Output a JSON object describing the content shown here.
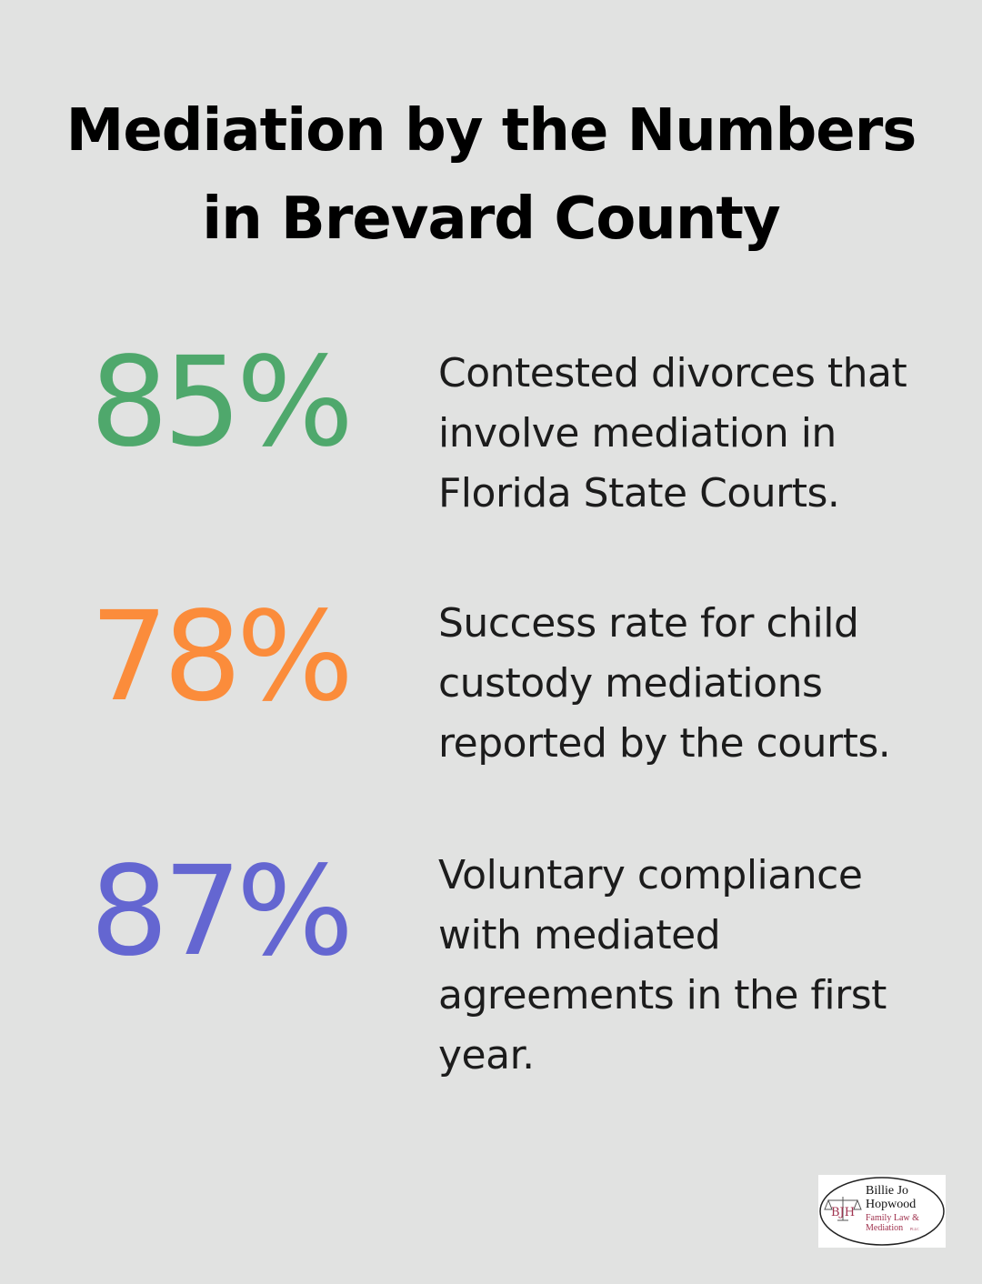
{
  "title": {
    "line1": "Mediation by the Numbers",
    "line2": "in Brevard County"
  },
  "stats": [
    {
      "value": "85%",
      "color": "#4fa86c",
      "lines": [
        "Contested divorces that",
        "involve mediation in",
        "Florida State Courts."
      ]
    },
    {
      "value": "78%",
      "color": "#fb8c3b",
      "lines": [
        "Success rate for child",
        "custody mediations",
        "reported by the courts."
      ]
    },
    {
      "value": "87%",
      "color": "#6466d1",
      "lines": [
        "Voluntary compliance",
        "with mediated",
        "agreements in the first",
        "year."
      ]
    }
  ],
  "logo": {
    "monogram": "BJH",
    "name_line1": "Billie Jo",
    "name_line2": "Hopwood",
    "sub_line1": "Family Law &",
    "sub_line2": "Mediation",
    "suffix": "PLLC",
    "brand_color": "#a0334f"
  }
}
